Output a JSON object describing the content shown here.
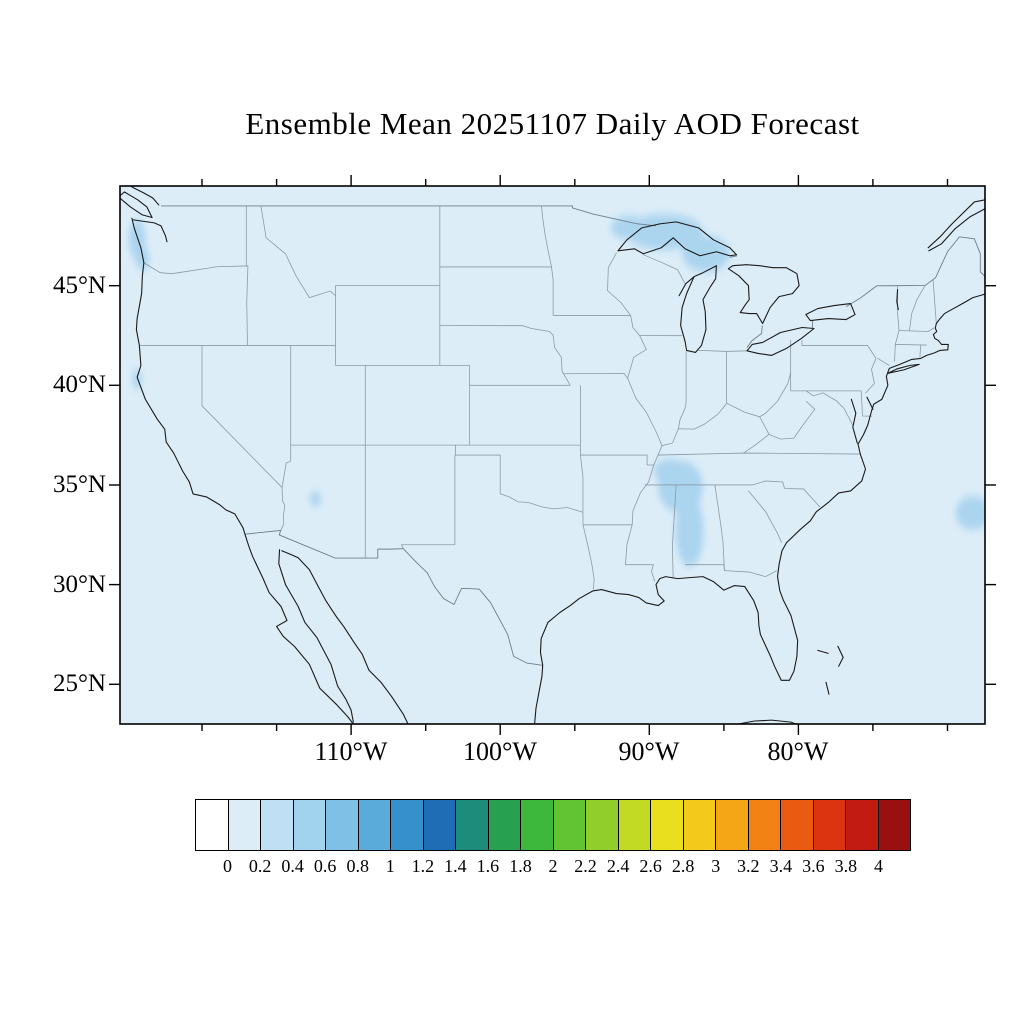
{
  "title": "Ensemble Mean 20251107 Daily AOD Forecast",
  "axes": {
    "lat_labels": [
      "45°N",
      "40°N",
      "35°N",
      "30°N",
      "25°N"
    ],
    "lon_labels": [
      "110°W",
      "100°W",
      "90°W",
      "80°W"
    ]
  },
  "map": {
    "base_fill": "#dcedf8",
    "patch_color": "#abd4ef",
    "coast_color": "#1a1a1a",
    "state_border_color": "#8a9aa6",
    "country_border_color": "#6d7f8b",
    "frame_color": "#000000"
  },
  "colorbar": {
    "tick_labels": [
      "0",
      "0.2",
      "0.4",
      "0.6",
      "0.8",
      "1",
      "1.2",
      "1.4",
      "1.6",
      "1.8",
      "2",
      "2.2",
      "2.4",
      "2.6",
      "2.8",
      "3",
      "3.2",
      "3.4",
      "3.6",
      "3.8",
      "4"
    ],
    "colors": [
      "#ffffff",
      "#dcedf8",
      "#bfe0f4",
      "#a1d2ee",
      "#7fc0e6",
      "#5aabd9",
      "#3690cb",
      "#1f6eb5",
      "#1e8c7a",
      "#27a14f",
      "#3db83c",
      "#63c433",
      "#92ce2b",
      "#c2da24",
      "#eadf1f",
      "#f3c91b",
      "#f5a617",
      "#f28214",
      "#ea5a11",
      "#dc3310",
      "#c21b12",
      "#9a1010"
    ]
  },
  "chart_data": {
    "type": "heatmap",
    "title": "Ensemble Mean 20251107 Daily AOD Forecast",
    "variable": "Daily ensemble-mean Aerosol Optical Depth (AOD)",
    "region": "Contiguous United States and adjacent Canada / Mexico / oceans",
    "projection_note": "geographic lat/lon map with colorbar",
    "x_axis": {
      "tick_labels": [
        "110°W",
        "100°W",
        "90°W",
        "80°W"
      ],
      "approx_range_deg_west": [
        125.5,
        67.5
      ]
    },
    "y_axis": {
      "tick_labels": [
        "45°N",
        "40°N",
        "35°N",
        "30°N",
        "25°N"
      ],
      "approx_range_deg_north": [
        23,
        50
      ]
    },
    "colorbar_levels": [
      0,
      0.2,
      0.4,
      0.6,
      0.8,
      1,
      1.2,
      1.4,
      1.6,
      1.8,
      2,
      2.2,
      2.4,
      2.6,
      2.8,
      3,
      3.2,
      3.4,
      3.6,
      3.8,
      4
    ],
    "background_value_range": [
      0,
      0.2
    ],
    "features": [
      {
        "location": "Lake Superior / upper Great Lakes (~46-48°N, 84-92°W)",
        "aod_range": [
          0.2,
          0.4
        ]
      },
      {
        "location": "Mississippi / Alabama / western Tennessee (~31-36°N, 86-89°W)",
        "aod_range": [
          0.2,
          0.4
        ]
      },
      {
        "location": "Washington coast (~46-48°N, 124°W)",
        "aod_range": [
          0.2,
          0.4
        ]
      },
      {
        "location": "Western Atlantic at right edge (~33-34.5°N, ~68°W)",
        "aod_range": [
          0.2,
          0.4
        ]
      },
      {
        "location": "Central Arizona speck (~34°N, 112.5°W)",
        "aod_range": [
          0.2,
          0.4
        ]
      }
    ],
    "legend_position": "bottom horizontal colorbar",
    "grid": false
  }
}
